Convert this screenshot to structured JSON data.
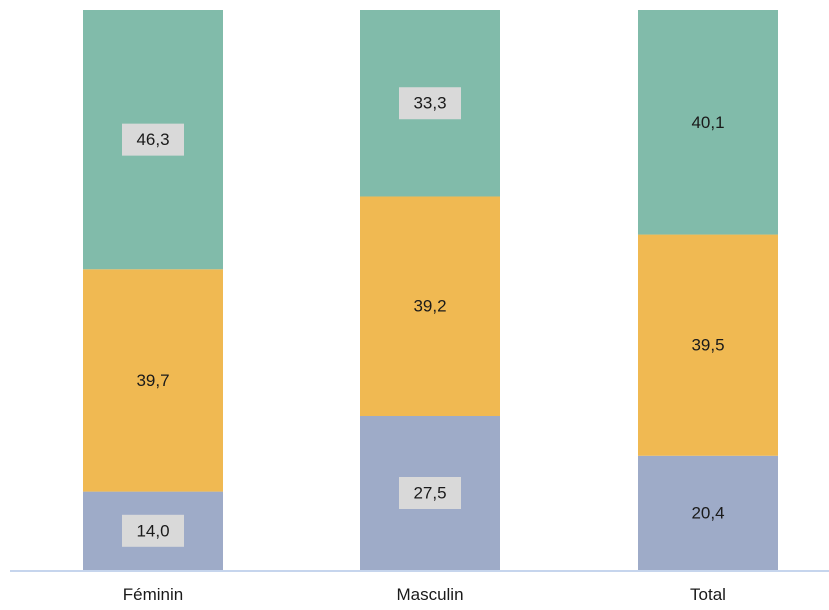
{
  "chart_data": {
    "type": "bar",
    "stacked": true,
    "title": "",
    "xlabel": "",
    "ylabel": "",
    "ylim": [
      0,
      100
    ],
    "grid": false,
    "legend": "none",
    "categories": [
      "Féminin",
      "Masculin",
      "Total"
    ],
    "series": [
      {
        "values": [
          14.0,
          27.5,
          20.4
        ],
        "labels": [
          "14,0",
          "27,5",
          "20,4"
        ],
        "color": "#9eabc8"
      },
      {
        "values": [
          39.7,
          39.2,
          39.5
        ],
        "labels": [
          "39,7",
          "39,2",
          "39,5"
        ],
        "color": "#f0b952"
      },
      {
        "values": [
          46.3,
          33.3,
          40.1
        ],
        "labels": [
          "46,3",
          "33,3",
          "40,1"
        ],
        "color": "#81bbaa"
      }
    ],
    "label_boxes": [
      [
        true,
        true,
        false
      ],
      [
        false,
        false,
        false
      ],
      [
        true,
        true,
        false
      ]
    ],
    "label_box_color": "#d9d9d9",
    "axis_color": "#b4c7e7"
  }
}
